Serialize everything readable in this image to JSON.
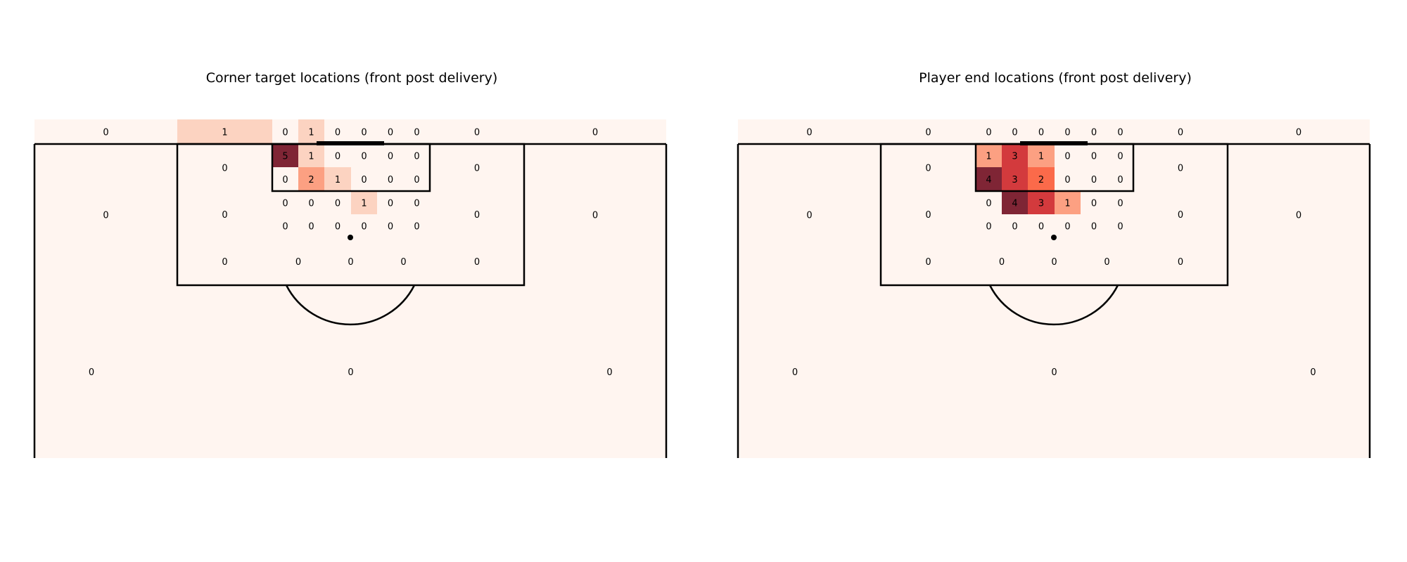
{
  "chart_data": [
    {
      "type": "heatmap",
      "title": "Corner target locations (front post delivery)",
      "values": {
        "top_strip": [
          0,
          1,
          0,
          1,
          0,
          0,
          0,
          0,
          0,
          0
        ],
        "six_yard_row1": [
          5,
          1,
          0,
          0,
          0,
          0
        ],
        "six_yard_row2": [
          0,
          2,
          1,
          0,
          0,
          0
        ],
        "box_row3": [
          0,
          0,
          0,
          1,
          0,
          0
        ],
        "box_row4": [
          0,
          0,
          0,
          0,
          0,
          0
        ],
        "box_left_upper": 0,
        "box_left_mid": 0,
        "box_right_upper": 0,
        "box_right_mid": 0,
        "box_bottom": [
          0,
          0,
          0,
          0,
          0
        ],
        "outside_left": 0,
        "outside_right": 0,
        "deep": [
          0,
          0,
          0
        ]
      }
    },
    {
      "type": "heatmap",
      "title": "Player end locations (front post delivery)",
      "values": {
        "top_strip": [
          0,
          0,
          0,
          0,
          0,
          0,
          0,
          0,
          0,
          0
        ],
        "six_yard_row1": [
          1,
          3,
          1,
          0,
          0,
          0
        ],
        "six_yard_row2": [
          4,
          3,
          2,
          0,
          0,
          0
        ],
        "box_row3": [
          0,
          4,
          3,
          1,
          0,
          0
        ],
        "box_row4": [
          0,
          0,
          0,
          0,
          0,
          0
        ],
        "box_left_upper": 0,
        "box_left_mid": 0,
        "box_right_upper": 0,
        "box_right_mid": 0,
        "box_bottom": [
          0,
          0,
          0,
          0,
          0
        ],
        "outside_left": 0,
        "outside_right": 0,
        "deep": [
          0,
          0,
          0
        ]
      }
    }
  ],
  "colors": {
    "scale": [
      "#fff5f0",
      "#fcd3c1",
      "#fca082",
      "#fb6a4a",
      "#d33a3d",
      "#a01d2b",
      "#7f2535"
    ],
    "line": "#000000"
  }
}
